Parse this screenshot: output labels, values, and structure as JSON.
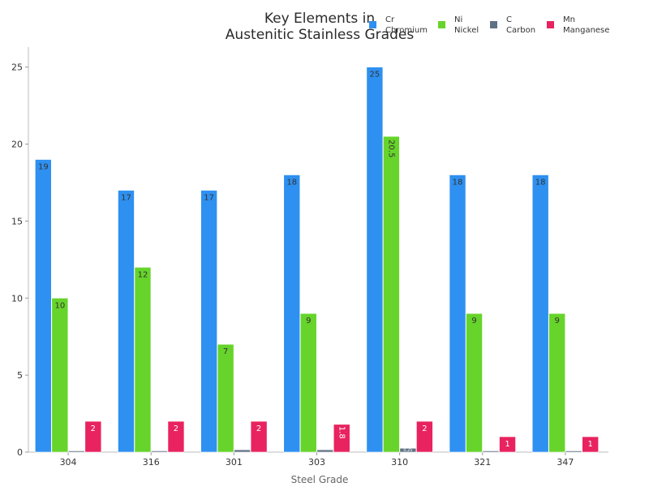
{
  "chart_data": {
    "type": "bar",
    "title_lines": [
      "Key Elements in",
      "Austenitic Stainless Grades"
    ],
    "xlabel": "Steel Grade",
    "ylabel": "",
    "ylim": [
      0,
      26.3
    ],
    "yticks": [
      0,
      5,
      10,
      15,
      20,
      25
    ],
    "grid": false,
    "legend_position": "top-right",
    "categories": [
      "304",
      "316",
      "301",
      "303",
      "310",
      "321",
      "347"
    ],
    "series": [
      {
        "name": "Cr",
        "sublabel": "Chromium",
        "color": "#2e90f0",
        "values": [
          19,
          17,
          17,
          18,
          25,
          18,
          18
        ],
        "labels": [
          "19",
          "17",
          "17",
          "18",
          "25",
          "18",
          "18"
        ]
      },
      {
        "name": "Ni",
        "sublabel": "Nickel",
        "color": "#66d42a",
        "values": [
          10,
          12,
          7,
          9,
          20.5,
          9,
          9
        ],
        "labels": [
          "10",
          "12",
          "7",
          "9",
          "20.5",
          "9",
          "9"
        ]
      },
      {
        "name": "C",
        "sublabel": "Carbon",
        "color": "#5f7183",
        "values": [
          0.08,
          0.08,
          0.15,
          0.15,
          0.25,
          0.08,
          0.08
        ],
        "labels": [
          "",
          "",
          "",
          "",
          "0.25",
          "",
          ""
        ]
      },
      {
        "name": "Mn",
        "sublabel": "Manganese",
        "color": "#e8235f",
        "values": [
          2,
          2,
          2,
          1.8,
          2,
          1,
          1
        ],
        "labels": [
          "2",
          "2",
          "2",
          "1.8",
          "2",
          "1",
          "1"
        ]
      }
    ]
  }
}
